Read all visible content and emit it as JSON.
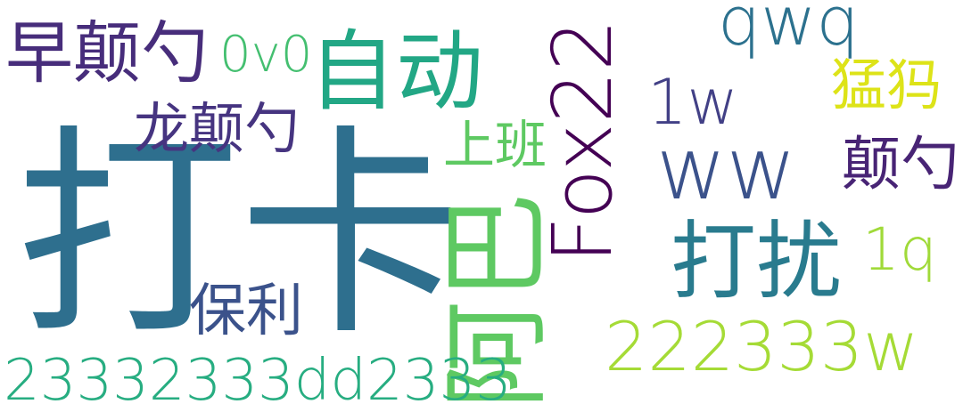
{
  "words": [
    {
      "id": "daka",
      "text": "打卡",
      "color": "#2e6f8e"
    },
    {
      "id": "zidong",
      "text": "自动",
      "color": "#22a785"
    },
    {
      "id": "zaodianshao",
      "text": "早颠勺",
      "color": "#472d7b"
    },
    {
      "id": "ovo",
      "text": "0v0",
      "color": "#44bf70"
    },
    {
      "id": "qwq",
      "text": "qwq",
      "color": "#2c718e"
    },
    {
      "id": "fox22",
      "text": "Fox22",
      "color": "#440154"
    },
    {
      "id": "one-w",
      "text": "1w",
      "color": "#424086"
    },
    {
      "id": "mengma",
      "text": "猛犸",
      "color": "#dde318"
    },
    {
      "id": "longdianshao",
      "text": "龙颠勺",
      "color": "#463480"
    },
    {
      "id": "shangban",
      "text": "上班",
      "color": "#5ec962"
    },
    {
      "id": "ww",
      "text": "ww",
      "color": "#3b528b"
    },
    {
      "id": "dianshao",
      "text": "颠勺",
      "color": "#482475"
    },
    {
      "id": "aba",
      "text": "阿巴",
      "color": "#5ec962"
    },
    {
      "id": "darao",
      "text": "打扰",
      "color": "#297b8e"
    },
    {
      "id": "one-q",
      "text": "1q",
      "color": "#a0da39"
    },
    {
      "id": "baoli",
      "text": "保利",
      "color": "#3b528b"
    },
    {
      "id": "num-222333w",
      "text": "222333w",
      "color": "#a5db36"
    },
    {
      "id": "num-23332333dd2333",
      "text": "23332333dd2333",
      "color": "#27ad81"
    }
  ]
}
